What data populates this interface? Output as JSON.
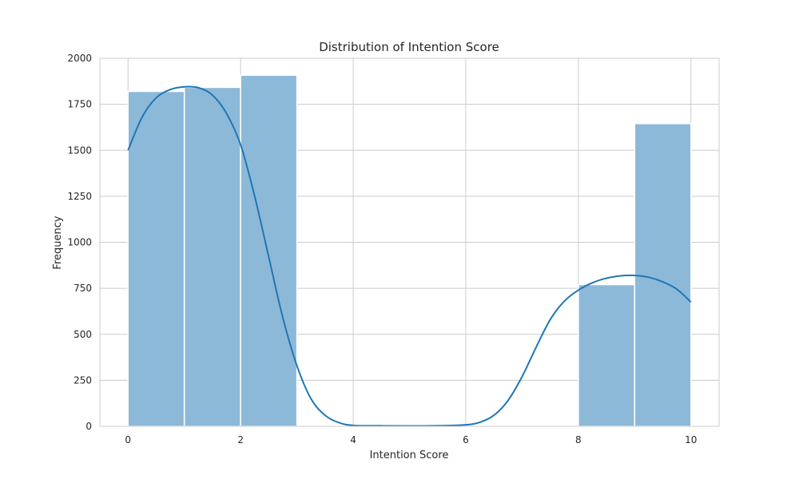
{
  "chart_data": {
    "type": "bar",
    "title": "Distribution of Intention Score",
    "xlabel": "Intention Score",
    "ylabel": "Frequency",
    "xlim": [
      -0.5,
      10.5
    ],
    "ylim": [
      0,
      2000
    ],
    "xticks": [
      0,
      2,
      4,
      6,
      8,
      10
    ],
    "yticks": [
      0,
      250,
      500,
      750,
      1000,
      1250,
      1500,
      1750,
      2000
    ],
    "grid": true,
    "bins": [
      {
        "start": 0,
        "end": 1,
        "count": 1820
      },
      {
        "start": 1,
        "end": 2,
        "count": 1842
      },
      {
        "start": 2,
        "end": 3,
        "count": 1908
      },
      {
        "start": 3,
        "end": 4,
        "count": 0
      },
      {
        "start": 4,
        "end": 5,
        "count": 0
      },
      {
        "start": 5,
        "end": 6,
        "count": 0
      },
      {
        "start": 6,
        "end": 7,
        "count": 0
      },
      {
        "start": 7,
        "end": 8,
        "count": 0
      },
      {
        "start": 8,
        "end": 9,
        "count": 770
      },
      {
        "start": 9,
        "end": 10,
        "count": 1645
      }
    ],
    "kde": {
      "x": [
        0,
        0.25,
        0.5,
        0.75,
        1.0,
        1.25,
        1.5,
        1.75,
        2.0,
        2.25,
        2.5,
        2.75,
        3.0,
        3.25,
        3.5,
        3.75,
        4.0,
        4.5,
        5.0,
        5.5,
        6.0,
        6.25,
        6.5,
        6.75,
        7.0,
        7.25,
        7.5,
        7.75,
        8.0,
        8.25,
        8.5,
        8.75,
        9.0,
        9.25,
        9.5,
        9.75,
        10.0
      ],
      "y": [
        1500,
        1680,
        1785,
        1830,
        1845,
        1840,
        1800,
        1700,
        1530,
        1250,
        920,
        590,
        330,
        150,
        60,
        20,
        5,
        3,
        2,
        3,
        8,
        22,
        60,
        140,
        270,
        430,
        580,
        680,
        740,
        780,
        805,
        818,
        820,
        810,
        785,
        745,
        675
      ]
    },
    "colors": {
      "bar": "#8db9d9",
      "kde": "#1f77b4",
      "grid": "#cccccc"
    }
  }
}
